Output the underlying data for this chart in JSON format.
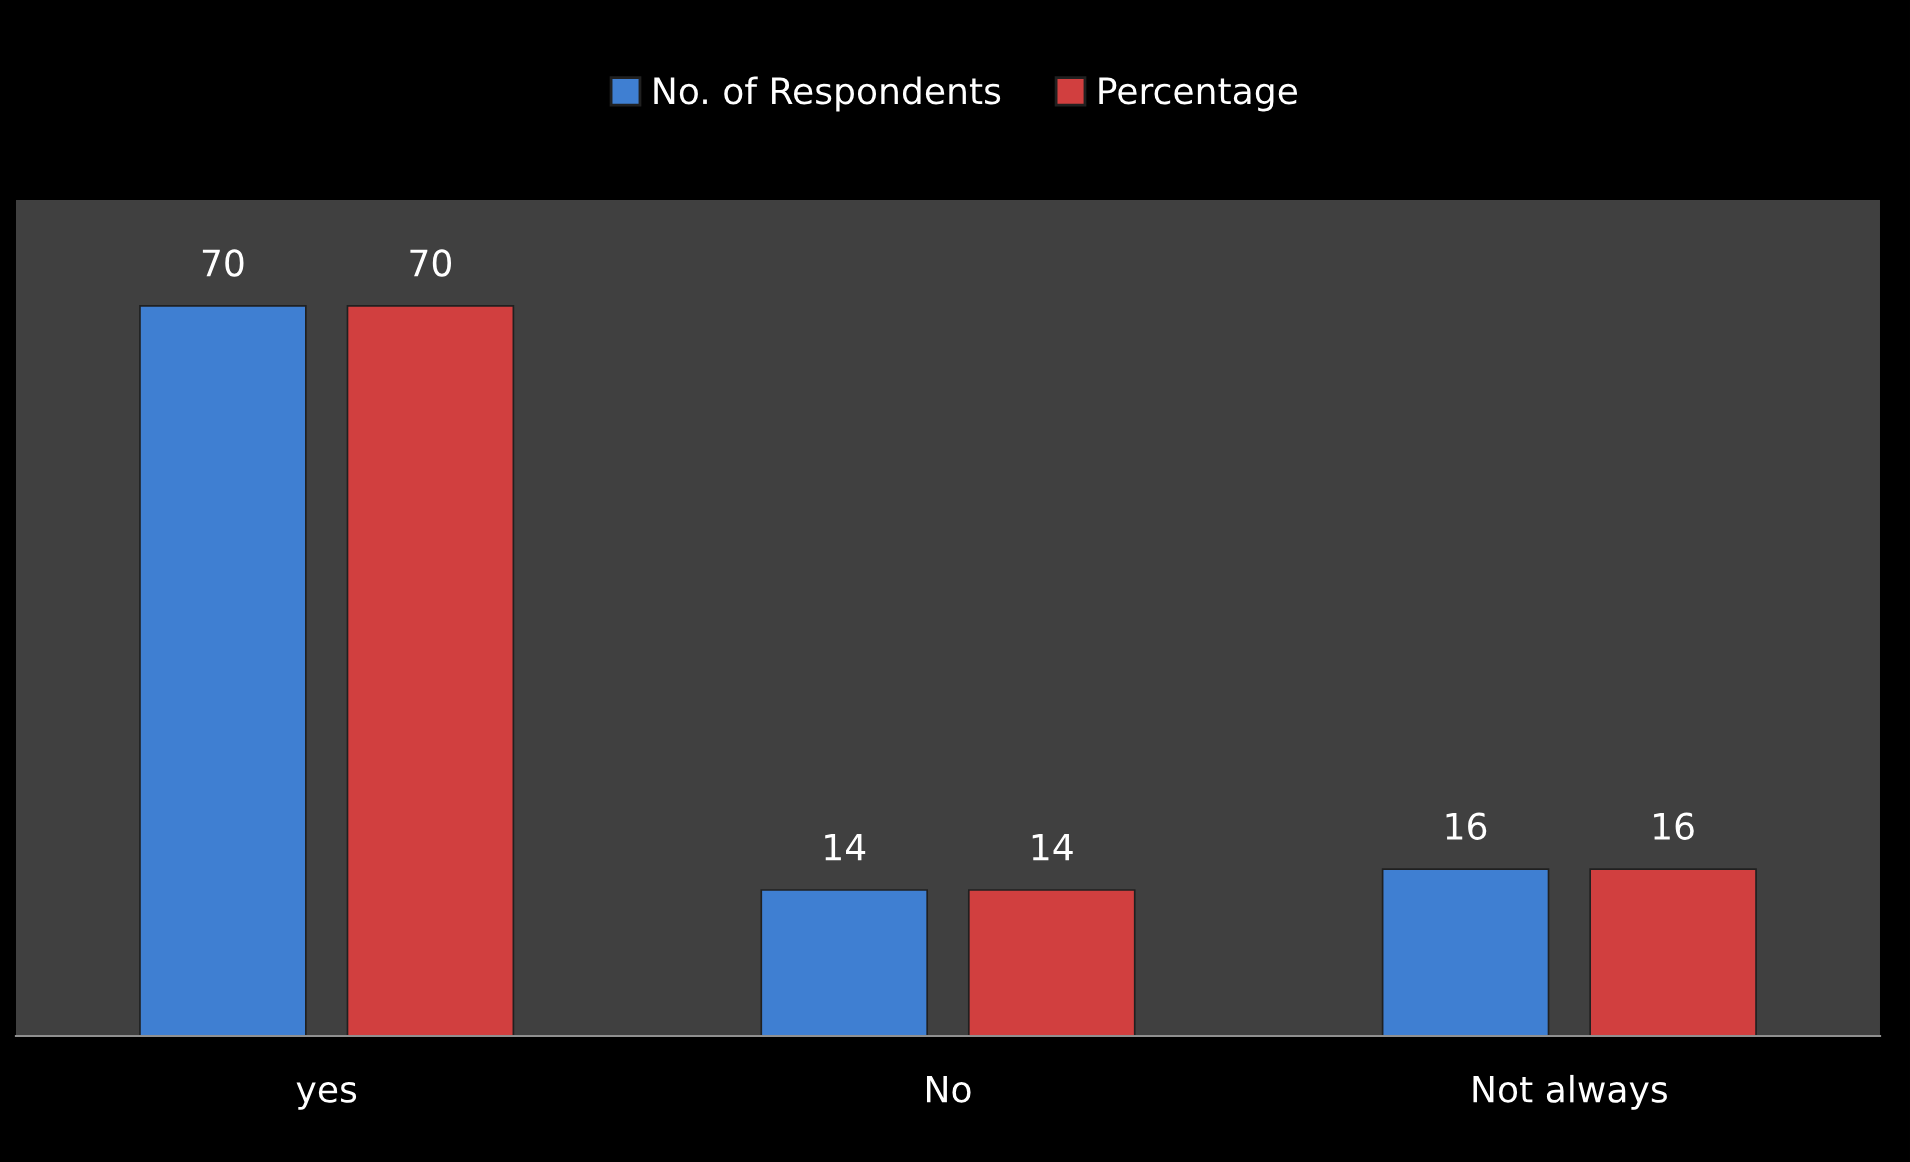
{
  "chart_data": {
    "type": "bar",
    "categories": [
      "yes",
      "No",
      "Not always"
    ],
    "series": [
      {
        "name": "No. of Respondents",
        "color": "#3f7fd2",
        "values": [
          70,
          14,
          16
        ]
      },
      {
        "name": "Percentage",
        "color": "#d13f3f",
        "values": [
          70,
          14,
          16
        ]
      }
    ],
    "data_labels": true,
    "legend": "top",
    "grid": false
  }
}
